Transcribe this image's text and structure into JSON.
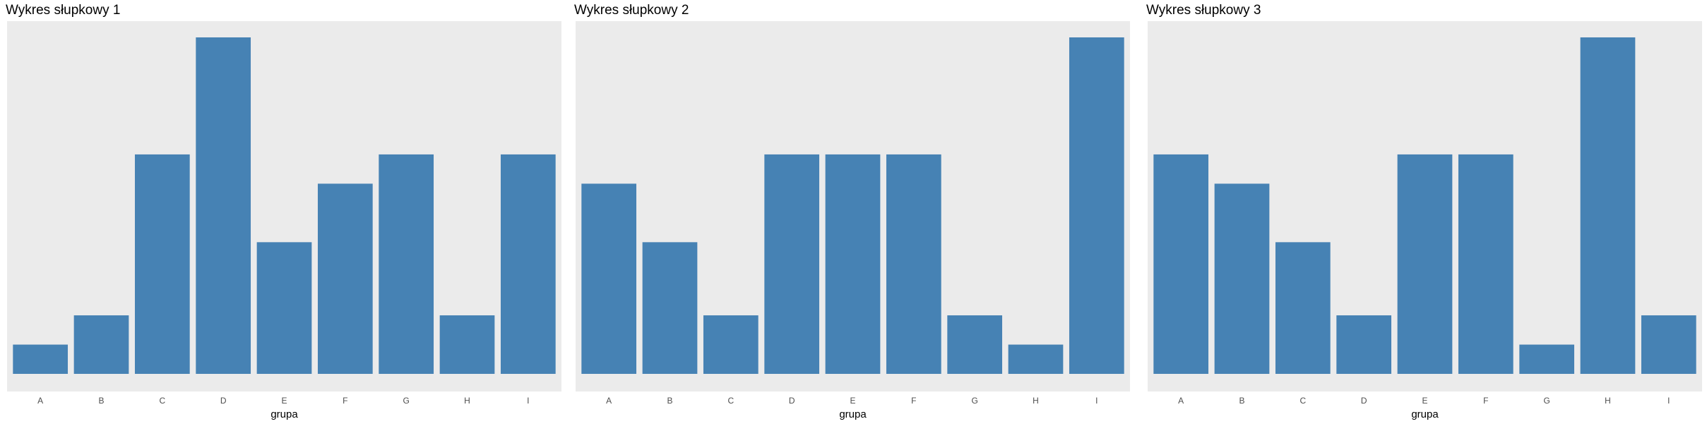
{
  "colors": {
    "bar": "#4682b4",
    "panel_background": "#ebebeb",
    "page_background": "#ffffff"
  },
  "chart_data": [
    {
      "type": "bar",
      "title": "Wykres słupkowy 1",
      "xlabel": "grupa",
      "ylabel": "",
      "categories": [
        "A",
        "B",
        "C",
        "D",
        "E",
        "F",
        "G",
        "H",
        "I"
      ],
      "values": [
        1,
        2,
        7.5,
        11.5,
        4.5,
        6.5,
        7.5,
        2,
        7.5
      ],
      "ylim": [
        0,
        12
      ],
      "grid": false,
      "y_axis_ticks_shown": false
    },
    {
      "type": "bar",
      "title": "Wykres słupkowy 2",
      "xlabel": "grupa",
      "ylabel": "",
      "categories": [
        "A",
        "B",
        "C",
        "D",
        "E",
        "F",
        "G",
        "H",
        "I"
      ],
      "values": [
        6.5,
        4.5,
        2,
        7.5,
        7.5,
        7.5,
        2,
        1,
        11.5
      ],
      "ylim": [
        0,
        12
      ],
      "grid": false,
      "y_axis_ticks_shown": false
    },
    {
      "type": "bar",
      "title": "Wykres słupkowy 3",
      "xlabel": "grupa",
      "ylabel": "",
      "categories": [
        "A",
        "B",
        "C",
        "D",
        "E",
        "F",
        "G",
        "H",
        "I"
      ],
      "values": [
        7.5,
        6.5,
        4.5,
        2,
        7.5,
        7.5,
        1,
        11.5,
        2
      ],
      "ylim": [
        0,
        12
      ],
      "grid": false,
      "y_axis_ticks_shown": false
    }
  ]
}
